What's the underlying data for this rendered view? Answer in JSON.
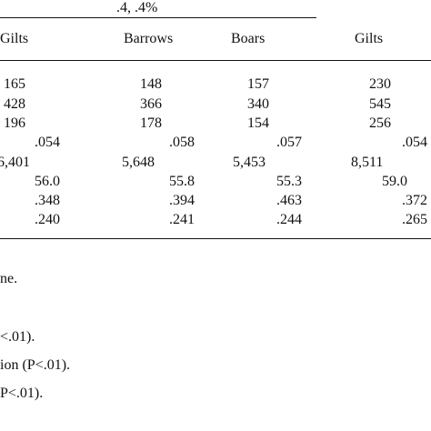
{
  "header": {
    "group_label": ".4, .4%",
    "columns": [
      "Gilts",
      "Barrows",
      "Boars",
      "Gilts"
    ]
  },
  "table": {
    "rows": [
      [
        "165",
        "148",
        "157",
        "230"
      ],
      [
        "428",
        "366",
        "340",
        "545"
      ],
      [
        "196",
        "178",
        "154",
        "256"
      ],
      [
        ".054",
        ".058",
        ".057",
        ".054"
      ],
      [
        "6,401",
        "5,648",
        "5,453",
        "8,511"
      ],
      [
        "56.0",
        "55.8",
        "55.3",
        "59.0"
      ],
      [
        ".348",
        ".394",
        ".463",
        ".372"
      ],
      [
        ".240",
        ".241",
        ".244",
        ".265"
      ]
    ]
  },
  "footnotes": [
    "ne.",
    "<.01).",
    "ion (P<.01).",
    "P<.01)."
  ]
}
